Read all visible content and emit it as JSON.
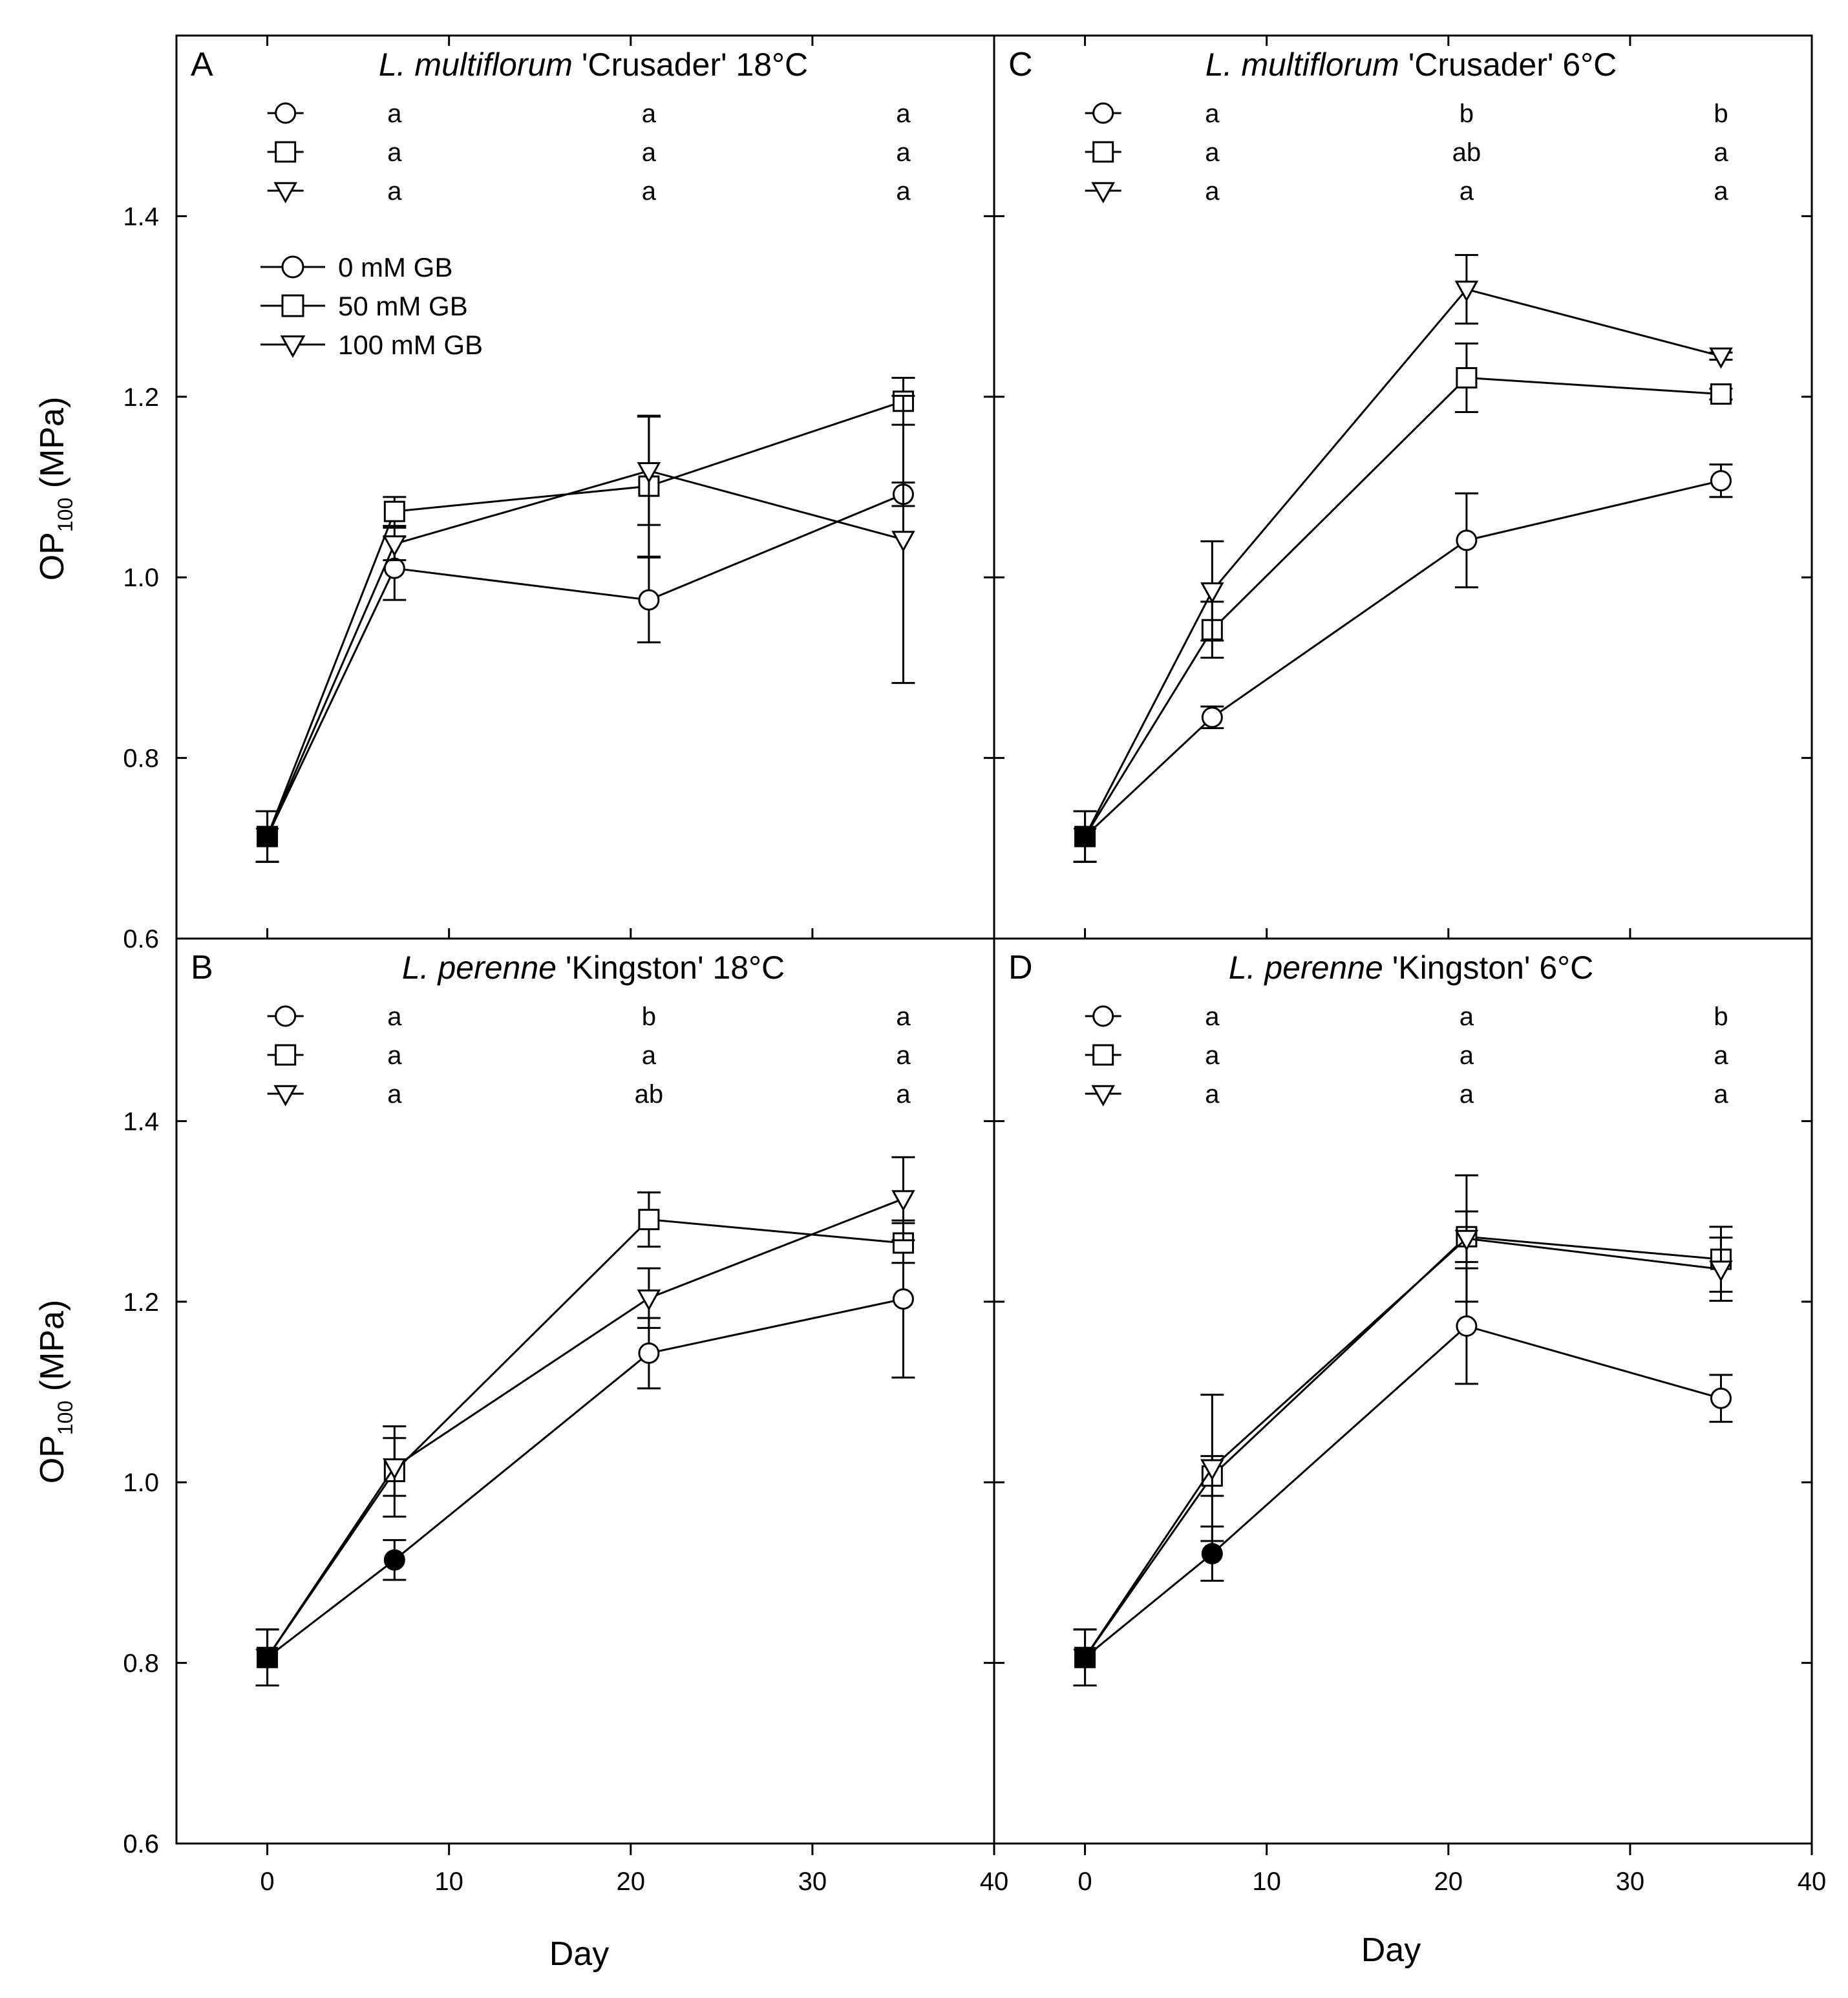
{
  "chart_data": {
    "type": "line",
    "xlabel": "Day",
    "ylabel": "OP",
    "ylabel_sub": "100",
    "ylabel_units": " (MPa)",
    "xlim": [
      -5,
      40
    ],
    "ylim": [
      0.6,
      1.6
    ],
    "xticks": [
      0,
      10,
      20,
      30,
      40
    ],
    "yticks": [
      0.6,
      0.8,
      1.0,
      1.2,
      1.4
    ],
    "ytick_labels": [
      "0.6",
      "0.8",
      "1.0",
      "1.2",
      "1.4"
    ],
    "legend": {
      "placement": "panel A, upper-left",
      "entries": [
        {
          "marker": "circle",
          "label": "0 mM GB"
        },
        {
          "marker": "square",
          "label": "50 mM GB"
        },
        {
          "marker": "triangle-down",
          "label": "100 mM GB"
        }
      ]
    },
    "panels": [
      {
        "letter": "A",
        "title_italic": "L. multiflorum",
        "title_rest": " 'Crusader' 18°C",
        "sig_days": [
          7,
          21,
          35
        ],
        "significance": [
          {
            "marker": "circle",
            "letters": [
              "a",
              "a",
              "a"
            ]
          },
          {
            "marker": "square",
            "letters": [
              "a",
              "a",
              "a"
            ]
          },
          {
            "marker": "triangle-down",
            "letters": [
              "a",
              "a",
              "a"
            ]
          }
        ],
        "series": [
          {
            "name": "0 mM GB",
            "marker": "circle",
            "x": [
              0,
              7,
              21,
              35
            ],
            "y": [
              0.713,
              1.01,
              0.975,
              1.092
            ],
            "err": [
              0.028,
              0.035,
              0.047,
              0.013
            ],
            "filled": [
              true,
              false,
              false,
              false
            ]
          },
          {
            "name": "50 mM GB",
            "marker": "square",
            "x": [
              0,
              7,
              21,
              35
            ],
            "y": [
              0.713,
              1.073,
              1.101,
              1.195
            ],
            "err": [
              0.028,
              0.016,
              0.078,
              0.026
            ],
            "filled": [
              true,
              false,
              false,
              false
            ]
          },
          {
            "name": "100 mM GB",
            "marker": "triangle-down",
            "x": [
              0,
              7,
              21,
              35
            ],
            "y": [
              0.713,
              1.037,
              1.118,
              1.042
            ],
            "err": [
              0.028,
              0.018,
              0.06,
              0.159
            ],
            "filled": [
              true,
              false,
              false,
              false
            ]
          }
        ]
      },
      {
        "letter": "B",
        "title_italic": "L. perenne",
        "title_rest": " 'Kingston' 18°C",
        "sig_days": [
          7,
          21,
          35
        ],
        "significance": [
          {
            "marker": "circle",
            "letters": [
              "a",
              "b",
              "a"
            ]
          },
          {
            "marker": "square",
            "letters": [
              "a",
              "a",
              "a"
            ]
          },
          {
            "marker": "triangle-down",
            "letters": [
              "a",
              "ab",
              "a"
            ]
          }
        ],
        "series": [
          {
            "name": "0 mM GB",
            "marker": "circle",
            "x": [
              0,
              7,
              21,
              35
            ],
            "y": [
              0.806,
              0.914,
              1.143,
              1.203
            ],
            "err": [
              0.031,
              0.022,
              0.039,
              0.087
            ],
            "filled": [
              true,
              true,
              false,
              false
            ]
          },
          {
            "name": "50 mM GB",
            "marker": "square",
            "x": [
              0,
              7,
              21,
              35
            ],
            "y": [
              0.806,
              1.012,
              1.291,
              1.265
            ],
            "err": [
              0.031,
              0.05,
              0.03,
              0.022
            ],
            "filled": [
              true,
              false,
              false,
              false
            ]
          },
          {
            "name": "100 mM GB",
            "marker": "triangle-down",
            "x": [
              0,
              7,
              21,
              35
            ],
            "y": [
              0.806,
              1.017,
              1.204,
              1.314
            ],
            "err": [
              0.031,
              0.032,
              0.033,
              0.046
            ],
            "filled": [
              true,
              false,
              false,
              false
            ]
          }
        ]
      },
      {
        "letter": "C",
        "title_italic": "L. multiflorum",
        "title_rest": " 'Crusader' 6°C",
        "sig_days": [
          7,
          21,
          35
        ],
        "significance": [
          {
            "marker": "circle",
            "letters": [
              "a",
              "b",
              "b"
            ]
          },
          {
            "marker": "square",
            "letters": [
              "a",
              "ab",
              "a"
            ]
          },
          {
            "marker": "triangle-down",
            "letters": [
              "a",
              "a",
              "a"
            ]
          }
        ],
        "series": [
          {
            "name": "0 mM GB",
            "marker": "circle",
            "x": [
              0,
              7,
              21,
              35
            ],
            "y": [
              0.713,
              0.845,
              1.041,
              1.107
            ],
            "err": [
              0.028,
              0.012,
              0.052,
              0.018
            ],
            "filled": [
              true,
              false,
              false,
              false
            ]
          },
          {
            "name": "50 mM GB",
            "marker": "square",
            "x": [
              0,
              7,
              21,
              35
            ],
            "y": [
              0.713,
              0.942,
              1.221,
              1.203
            ],
            "err": [
              0.028,
              0.031,
              0.038,
              0.006
            ],
            "filled": [
              true,
              false,
              false,
              false
            ]
          },
          {
            "name": "100 mM GB",
            "marker": "triangle-down",
            "x": [
              0,
              7,
              21,
              35
            ],
            "y": [
              0.713,
              0.985,
              1.319,
              1.245
            ],
            "err": [
              0.028,
              0.055,
              0.038,
              0.004
            ],
            "filled": [
              true,
              false,
              false,
              false
            ]
          }
        ]
      },
      {
        "letter": "D",
        "title_italic": "L. perenne",
        "title_rest": " 'Kingston' 6°C",
        "sig_days": [
          7,
          21,
          35
        ],
        "significance": [
          {
            "marker": "circle",
            "letters": [
              "a",
              "a",
              "b"
            ]
          },
          {
            "marker": "square",
            "letters": [
              "a",
              "a",
              "a"
            ]
          },
          {
            "marker": "triangle-down",
            "letters": [
              "a",
              "a",
              "a"
            ]
          }
        ],
        "series": [
          {
            "name": "0 mM GB",
            "marker": "circle",
            "x": [
              0,
              7,
              21,
              35
            ],
            "y": [
              0.806,
              0.921,
              1.173,
              1.093
            ],
            "err": [
              0.031,
              0.03,
              0.064,
              0.026
            ],
            "filled": [
              true,
              true,
              false,
              false
            ]
          },
          {
            "name": "50 mM GB",
            "marker": "square",
            "x": [
              0,
              7,
              21,
              35
            ],
            "y": [
              0.806,
              1.007,
              1.272,
              1.247
            ],
            "err": [
              0.031,
              0.022,
              0.028,
              0.036
            ],
            "filled": [
              true,
              false,
              false,
              false
            ]
          },
          {
            "name": "100 mM GB",
            "marker": "triangle-down",
            "x": [
              0,
              7,
              21,
              35
            ],
            "y": [
              0.806,
              1.016,
              1.27,
              1.236
            ],
            "err": [
              0.031,
              0.081,
              0.07,
              0.035
            ],
            "filled": [
              true,
              false,
              false,
              false
            ]
          }
        ]
      }
    ]
  }
}
